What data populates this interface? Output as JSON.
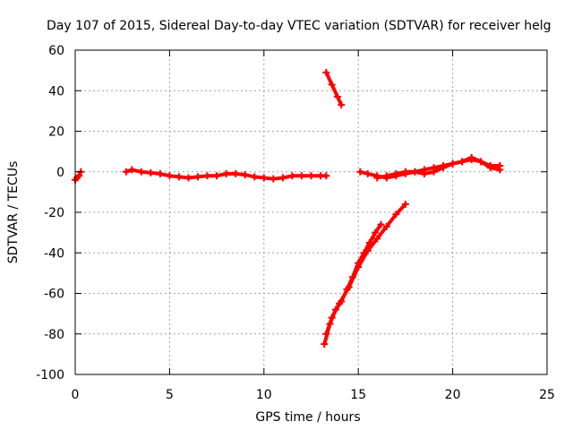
{
  "chart_data": {
    "type": "scatter",
    "title": "Day 107 of 2015, Sidereal Day-to-day VTEC variation (SDTVAR) for receiver helg",
    "xlabel": "GPS time / hours",
    "ylabel": "SDTVAR / TECUs",
    "xlim": [
      0,
      25
    ],
    "ylim": [
      -100,
      60
    ],
    "xticks": [
      0,
      5,
      10,
      15,
      20,
      25
    ],
    "yticks": [
      -100,
      -80,
      -60,
      -40,
      -20,
      0,
      20,
      40,
      60
    ],
    "grid": true,
    "legend": "none",
    "series_color": "#ff0000",
    "series": [
      {
        "x": [
          0.0,
          0.1,
          0.2,
          0.3
        ],
        "y": [
          -4,
          -3,
          -2,
          0
        ]
      },
      {
        "x": [
          2.7,
          3.0,
          3.5,
          4.0,
          4.5,
          5.0,
          5.5,
          6.0,
          6.5,
          7.0,
          7.5,
          8.0,
          8.5,
          9.0,
          9.5,
          10.0,
          10.5,
          11.0,
          11.5,
          12.0,
          12.5,
          13.0,
          13.3
        ],
        "y": [
          0,
          1,
          0,
          -0.5,
          -1,
          -2,
          -2.5,
          -3,
          -2.5,
          -2,
          -2,
          -1,
          -1,
          -1.5,
          -2.5,
          -3,
          -3.5,
          -3,
          -2,
          -2,
          -2,
          -2,
          -2
        ]
      },
      {
        "x": [
          13.3,
          13.6,
          13.9,
          14.1
        ],
        "y": [
          49,
          43,
          37,
          33
        ]
      },
      {
        "x": [
          13.2,
          13.5,
          13.8,
          14.1,
          14.4,
          14.7,
          15.0,
          15.3,
          15.6,
          15.9,
          16.2
        ],
        "y": [
          -85,
          -75,
          -68,
          -64,
          -58,
          -52,
          -45,
          -40,
          -35,
          -30,
          -26
        ]
      },
      {
        "x": [
          13.3,
          13.6,
          14.0,
          14.5,
          15.0,
          15.5,
          16.0,
          16.5,
          17.0,
          17.5
        ],
        "y": [
          -80,
          -72,
          -65,
          -57,
          -47,
          -39,
          -33,
          -27,
          -21,
          -16
        ]
      },
      {
        "x": [
          15.1,
          15.5,
          16.0,
          16.5,
          17.0,
          17.5,
          18.0,
          18.5,
          19.0,
          19.5,
          20.0,
          20.5,
          21.0,
          21.5,
          22.0,
          22.5
        ],
        "y": [
          0,
          -1,
          -2,
          -3,
          -2,
          -1,
          0,
          1,
          2,
          3,
          4,
          5,
          6,
          5,
          3,
          3
        ]
      },
      {
        "x": [
          16.0,
          16.5,
          17.0,
          17.5,
          18.0,
          18.5,
          19.0,
          19.5,
          20.0,
          20.5,
          21.0,
          21.5,
          22.0,
          22.5
        ],
        "y": [
          -3,
          -2,
          -1,
          0,
          0,
          -1,
          0,
          2,
          4,
          5,
          7,
          5,
          2,
          1
        ]
      }
    ]
  }
}
